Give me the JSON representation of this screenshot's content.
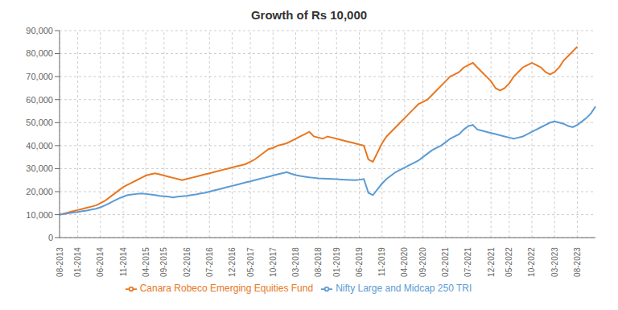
{
  "chart_data": {
    "type": "line",
    "title": "Growth of Rs 10,000",
    "categories": [
      "08-2013",
      null,
      null,
      null,
      "01-2014",
      null,
      null,
      null,
      null,
      "06-2014",
      null,
      null,
      null,
      null,
      "11-2014",
      null,
      null,
      null,
      null,
      "04-2015",
      null,
      null,
      null,
      "09-2015",
      null,
      null,
      null,
      null,
      "02-2016",
      null,
      null,
      null,
      null,
      "07-2016",
      null,
      null,
      null,
      null,
      "12-2016",
      null,
      null,
      null,
      "05-2017",
      null,
      null,
      null,
      null,
      "10-2017",
      null,
      null,
      null,
      null,
      "03-2018",
      null,
      null,
      null,
      null,
      "08-2018",
      null,
      null,
      null,
      "01-2019",
      null,
      null,
      null,
      null,
      "06-2019",
      null,
      null,
      null,
      null,
      "11-2019",
      null,
      null,
      null,
      null,
      "04-2020",
      null,
      null,
      null,
      "09-2020",
      null,
      null,
      null,
      null,
      "02-2021",
      null,
      null,
      null,
      null,
      "07-2021",
      null,
      null,
      null,
      null,
      "12-2021",
      null,
      null,
      null,
      "05-2022",
      null,
      null,
      null,
      null,
      "10-2022",
      null,
      null,
      null,
      null,
      "03-2023",
      null,
      null,
      null,
      null,
      "08-2023",
      null,
      null,
      null,
      null
    ],
    "series": [
      {
        "name": "Canara Robeco Emerging Equities Fund",
        "color": "#E87722",
        "values": [
          10000,
          10500,
          11000,
          11500,
          12000,
          12500,
          13000,
          13500,
          14000,
          15000,
          16000,
          17500,
          19000,
          20500,
          22000,
          23000,
          24000,
          25000,
          26000,
          27000,
          27500,
          28000,
          27500,
          27000,
          26500,
          26000,
          25500,
          25000,
          25500,
          26000,
          26500,
          27000,
          27500,
          28000,
          28500,
          29000,
          29500,
          30000,
          30500,
          31000,
          31500,
          32000,
          33000,
          34000,
          35500,
          37000,
          38500,
          39000,
          40000,
          40500,
          41000,
          42000,
          43000,
          44000,
          45000,
          46000,
          44000,
          43500,
          43000,
          44000,
          43500,
          43000,
          42500,
          42000,
          41500,
          41000,
          40500,
          40000,
          34000,
          33000,
          37000,
          41000,
          44000,
          46000,
          48000,
          50000,
          52000,
          54000,
          56000,
          58000,
          59000,
          60000,
          62000,
          64000,
          66000,
          68000,
          70000,
          71000,
          72000,
          74000,
          75000,
          76000,
          74000,
          72000,
          70000,
          68000,
          65000,
          64000,
          65000,
          67000,
          70000,
          72000,
          74000,
          75000,
          76000,
          75000,
          74000,
          72000,
          71000,
          72000,
          74000,
          77000,
          79000,
          81000,
          83000,
          null,
          null,
          null,
          null
        ]
      },
      {
        "name": "Nifty Large and Midcap 250 TRI",
        "color": "#5B9BD5",
        "values": [
          10000,
          10300,
          10600,
          10900,
          11200,
          11500,
          11800,
          12200,
          12600,
          13200,
          14000,
          15000,
          16000,
          17000,
          17800,
          18500,
          18800,
          19000,
          19200,
          19000,
          18800,
          18500,
          18200,
          18000,
          17800,
          17500,
          17800,
          18000,
          18200,
          18500,
          18800,
          19200,
          19500,
          20000,
          20500,
          21000,
          21500,
          22000,
          22500,
          23000,
          23500,
          24000,
          24500,
          25000,
          25500,
          26000,
          26500,
          27000,
          27500,
          28000,
          28500,
          27800,
          27200,
          26800,
          26500,
          26200,
          26000,
          25800,
          25700,
          25600,
          25500,
          25400,
          25300,
          25200,
          25100,
          25000,
          25200,
          25500,
          19500,
          18500,
          21000,
          23500,
          25500,
          27000,
          28500,
          29500,
          30500,
          31500,
          32500,
          33500,
          35000,
          36500,
          38000,
          39000,
          40000,
          41500,
          43000,
          44000,
          45000,
          47000,
          48500,
          49000,
          47000,
          46500,
          46000,
          45500,
          45000,
          44500,
          44000,
          43500,
          43000,
          43500,
          44000,
          45000,
          46000,
          47000,
          48000,
          49000,
          50000,
          50500,
          50000,
          49500,
          48500,
          48000,
          49000,
          50500,
          52000,
          54000,
          57000
        ]
      }
    ],
    "ylim": [
      0,
      90000
    ],
    "yticks": [
      0,
      {
        "value": 10000,
        "label": "10,000"
      },
      {
        "value": 20000,
        "label": "20,000"
      },
      {
        "value": 30000,
        "label": "30,000"
      },
      {
        "value": 40000,
        "label": "40,000"
      },
      {
        "value": 50000,
        "label": "50,000"
      },
      {
        "value": 60000,
        "label": "60,000"
      },
      {
        "value": 70000,
        "label": "70,000"
      },
      {
        "value": 80000,
        "label": "80,000"
      },
      {
        "value": 90000,
        "label": "90,000"
      }
    ],
    "grid": true,
    "legend": "bottom"
  }
}
